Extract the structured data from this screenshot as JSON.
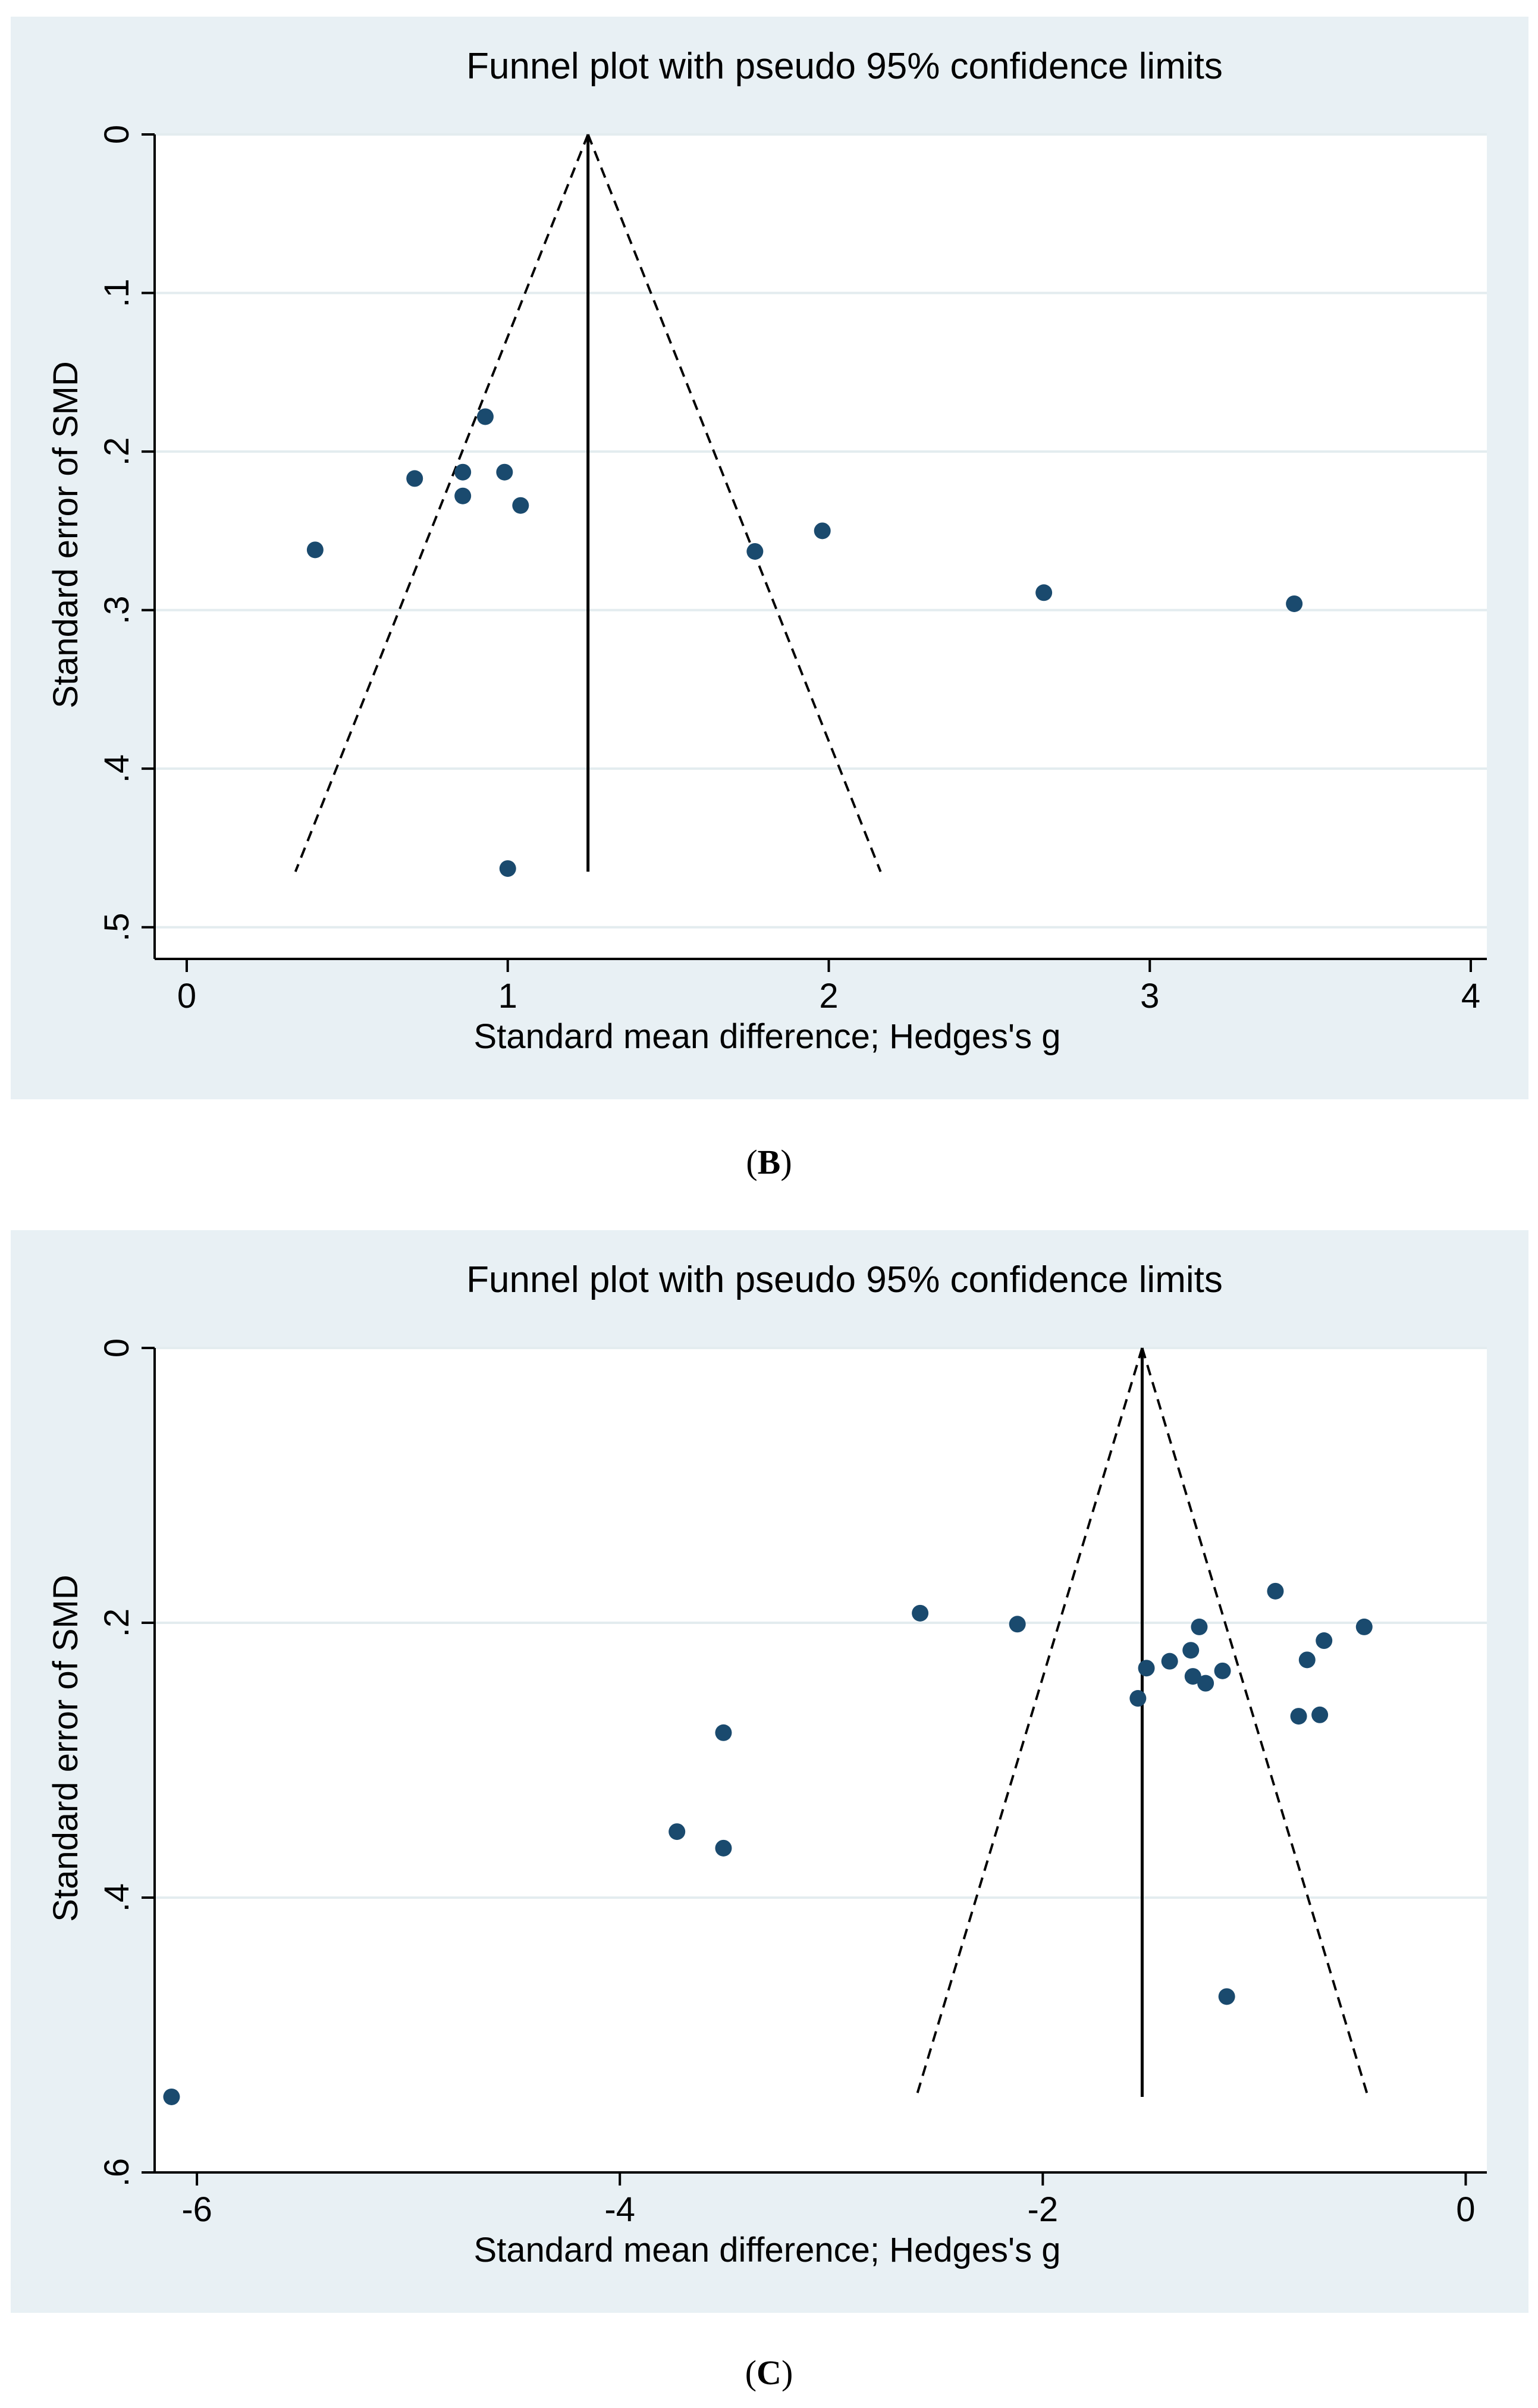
{
  "figure": {
    "panels": [
      {
        "caption_letter": "B",
        "chart_data": {
          "type": "scatter",
          "title": "Funnel plot with pseudo 95% confidence limits",
          "xlabel": "Standard mean difference; Hedges's g",
          "ylabel": "Standard error of SMD",
          "xlim": [
            -0.1,
            4.05
          ],
          "ylim": [
            0,
            0.52
          ],
          "y_reversed": true,
          "grid": true,
          "x_ticks": [
            0,
            1,
            2,
            3,
            4
          ],
          "x_tick_labels": [
            "0",
            "1",
            "2",
            "3",
            "4"
          ],
          "y_ticks": [
            0,
            0.1,
            0.2,
            0.3,
            0.4,
            0.5
          ],
          "y_tick_labels": [
            "0",
            ".1",
            ".2",
            ".3",
            ".4",
            ".5"
          ],
          "pooled_estimate": 1.25,
          "funnel_se_max": 0.465,
          "points": [
            {
              "x": 0.4,
              "y": 0.262
            },
            {
              "x": 0.71,
              "y": 0.217
            },
            {
              "x": 0.86,
              "y": 0.213
            },
            {
              "x": 0.86,
              "y": 0.228
            },
            {
              "x": 0.93,
              "y": 0.178
            },
            {
              "x": 0.99,
              "y": 0.213
            },
            {
              "x": 1.04,
              "y": 0.234
            },
            {
              "x": 1.0,
              "y": 0.463
            },
            {
              "x": 1.77,
              "y": 0.263
            },
            {
              "x": 1.98,
              "y": 0.25
            },
            {
              "x": 2.67,
              "y": 0.289
            },
            {
              "x": 3.45,
              "y": 0.296
            }
          ]
        }
      },
      {
        "caption_letter": "C",
        "chart_data": {
          "type": "scatter",
          "title": "Funnel plot with pseudo 95% confidence limits",
          "xlabel": "Standard mean difference; Hedges's g",
          "ylabel": "Standard error of SMD",
          "xlim": [
            -6.2,
            0.1
          ],
          "ylim": [
            0,
            0.6
          ],
          "y_reversed": true,
          "grid": true,
          "x_ticks": [
            -6,
            -4,
            -2,
            0
          ],
          "x_tick_labels": [
            "-6",
            "-4",
            "-2",
            "0"
          ],
          "y_ticks": [
            0,
            0.2,
            0.4,
            0.6
          ],
          "y_tick_labels": [
            "0",
            ".2",
            ".4",
            ".6"
          ],
          "pooled_estimate": -1.53,
          "funnel_se_max": 0.545,
          "points": [
            {
              "x": -6.12,
              "y": 0.545
            },
            {
              "x": -3.73,
              "y": 0.352
            },
            {
              "x": -3.51,
              "y": 0.28
            },
            {
              "x": -3.51,
              "y": 0.364
            },
            {
              "x": -2.58,
              "y": 0.193
            },
            {
              "x": -2.12,
              "y": 0.201
            },
            {
              "x": -1.55,
              "y": 0.255
            },
            {
              "x": -1.51,
              "y": 0.233
            },
            {
              "x": -1.4,
              "y": 0.228
            },
            {
              "x": -1.3,
              "y": 0.22
            },
            {
              "x": -1.29,
              "y": 0.239
            },
            {
              "x": -1.26,
              "y": 0.203
            },
            {
              "x": -1.23,
              "y": 0.244
            },
            {
              "x": -1.15,
              "y": 0.235
            },
            {
              "x": -1.13,
              "y": 0.472
            },
            {
              "x": -0.9,
              "y": 0.177
            },
            {
              "x": -0.79,
              "y": 0.268
            },
            {
              "x": -0.75,
              "y": 0.227
            },
            {
              "x": -0.69,
              "y": 0.267
            },
            {
              "x": -0.67,
              "y": 0.213
            },
            {
              "x": -0.48,
              "y": 0.203
            }
          ]
        }
      }
    ]
  }
}
